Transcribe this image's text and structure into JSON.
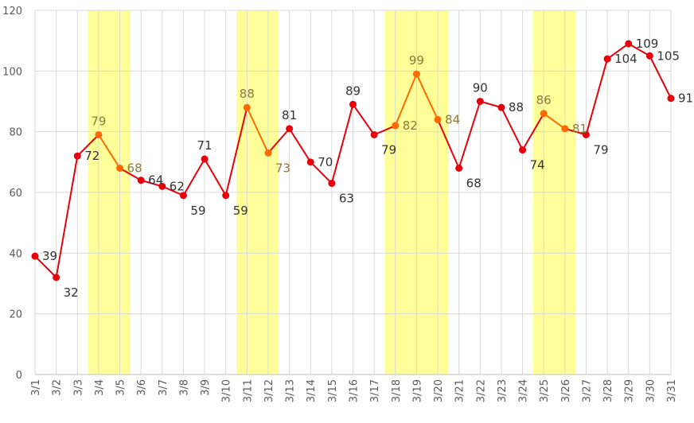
{
  "chart_data": {
    "type": "line",
    "title": "",
    "xlabel": "",
    "ylabel": "",
    "ylim": [
      0,
      120
    ],
    "yticks": [
      0,
      20,
      40,
      60,
      80,
      100,
      120
    ],
    "grid": true,
    "legend": "none",
    "categories": [
      "3/1",
      "3/2",
      "3/3",
      "3/4",
      "3/5",
      "3/6",
      "3/7",
      "3/8",
      "3/9",
      "3/10",
      "3/11",
      "3/12",
      "3/13",
      "3/14",
      "3/15",
      "3/16",
      "3/17",
      "3/18",
      "3/19",
      "3/20",
      "3/21",
      "3/22",
      "3/23",
      "3/24",
      "3/25",
      "3/26",
      "3/27",
      "3/28",
      "3/29",
      "3/30",
      "3/31"
    ],
    "series": [
      {
        "values": [
          39,
          32,
          72,
          79,
          68,
          64,
          62,
          59,
          71,
          59,
          88,
          73,
          81,
          70,
          63,
          89,
          79,
          82,
          99,
          84,
          68,
          90,
          88,
          74,
          86,
          81,
          79,
          104,
          109,
          105,
          91
        ]
      }
    ],
    "highlight_ranges": [
      {
        "from": "3/4",
        "to": "3/5"
      },
      {
        "from": "3/11",
        "to": "3/12"
      },
      {
        "from": "3/18",
        "to": "3/20"
      },
      {
        "from": "3/25",
        "to": "3/26"
      }
    ],
    "colors": {
      "normal": "#e8000b",
      "highlight": "#ff6a00",
      "highlight_label": "#8c7a3a",
      "normal_label": "#333333",
      "band": "#ffff99",
      "grid": "#d9d9d9",
      "axis": "#bfbfbf"
    }
  }
}
